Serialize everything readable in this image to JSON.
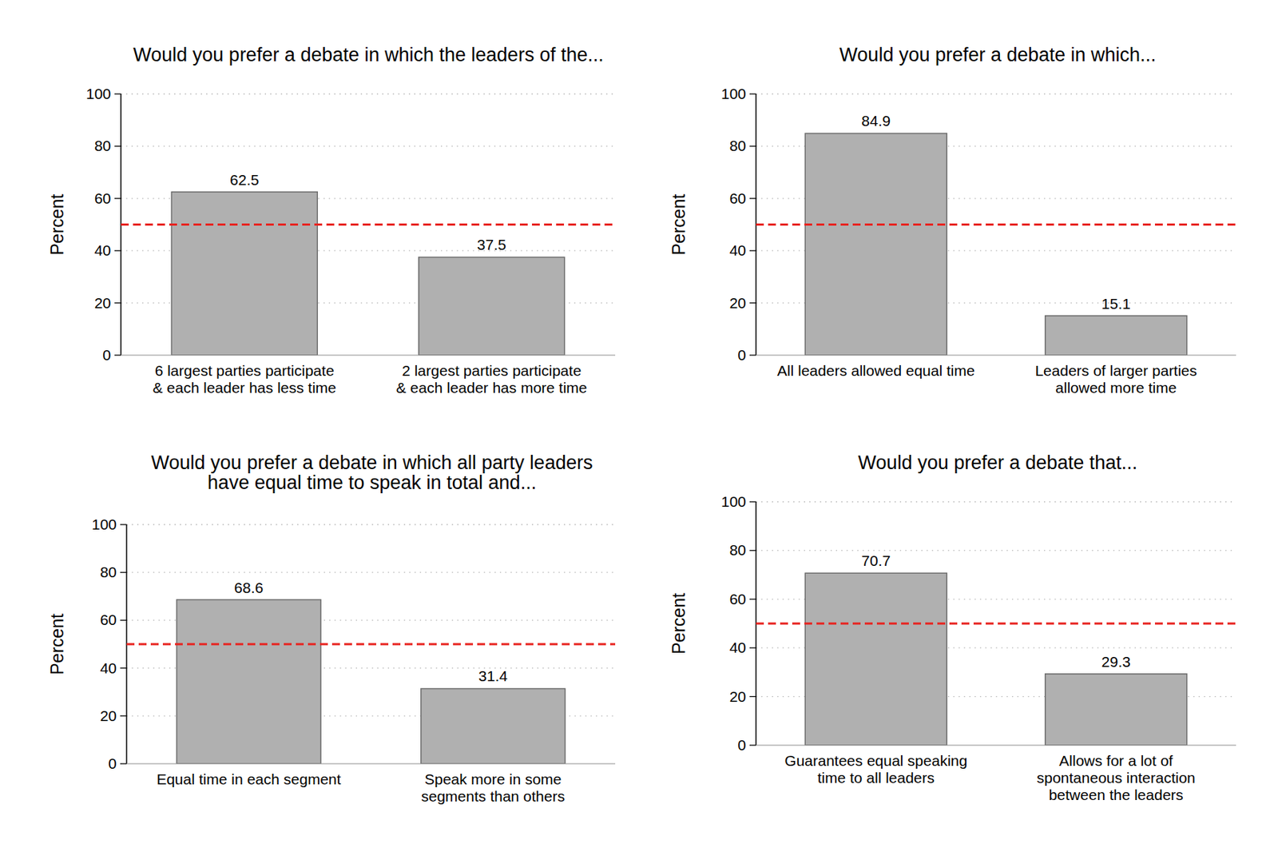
{
  "chart_data": [
    {
      "type": "bar",
      "title": "Would you prefer a debate in which the leaders of the...",
      "categories": [
        "6 largest parties participate\n& each leader has less time",
        "2 largest parties participate\n& each leader has more time"
      ],
      "values": [
        62.5,
        37.5
      ],
      "color": "#b0b0b0",
      "y_label": "Percent",
      "ylim": [
        0,
        100
      ],
      "yticks": [
        0,
        20,
        40,
        60,
        80,
        100
      ],
      "grid": true,
      "data_labels": true,
      "annotations": [
        {
          "type": "hline",
          "y": 50,
          "color": "#e8231f",
          "line_style": "dashed"
        }
      ]
    },
    {
      "type": "bar",
      "title": "Would you prefer a debate in which...",
      "categories": [
        "All leaders allowed equal time",
        "Leaders of larger parties\nallowed more time"
      ],
      "values": [
        84.9,
        15.1
      ],
      "color": "#b0b0b0",
      "y_label": "Percent",
      "ylim": [
        0,
        100
      ],
      "yticks": [
        0,
        20,
        40,
        60,
        80,
        100
      ],
      "grid": true,
      "data_labels": true,
      "annotations": [
        {
          "type": "hline",
          "y": 50,
          "color": "#e8231f",
          "line_style": "dashed"
        }
      ]
    },
    {
      "type": "bar",
      "title": "Would you prefer a debate in which all party leaders\nhave equal time to speak in total and...",
      "categories": [
        "Equal time in each segment",
        "Speak more in some\nsegments than others"
      ],
      "values": [
        68.6,
        31.4
      ],
      "color": "#b0b0b0",
      "y_label": "Percent",
      "ylim": [
        0,
        100
      ],
      "yticks": [
        0,
        20,
        40,
        60,
        80,
        100
      ],
      "grid": true,
      "data_labels": true,
      "annotations": [
        {
          "type": "hline",
          "y": 50,
          "color": "#e8231f",
          "line_style": "dashed"
        }
      ]
    },
    {
      "type": "bar",
      "title": "Would you prefer a debate that...",
      "categories": [
        "Guarantees equal speaking\ntime to all leaders",
        "Allows for a lot of\nspontaneous interaction\nbetween the leaders"
      ],
      "values": [
        70.7,
        29.3
      ],
      "color": "#b0b0b0",
      "y_label": "Percent",
      "ylim": [
        0,
        100
      ],
      "yticks": [
        0,
        20,
        40,
        60,
        80,
        100
      ],
      "grid": true,
      "data_labels": true,
      "annotations": [
        {
          "type": "hline",
          "y": 50,
          "color": "#e8231f",
          "line_style": "dashed"
        }
      ]
    }
  ]
}
